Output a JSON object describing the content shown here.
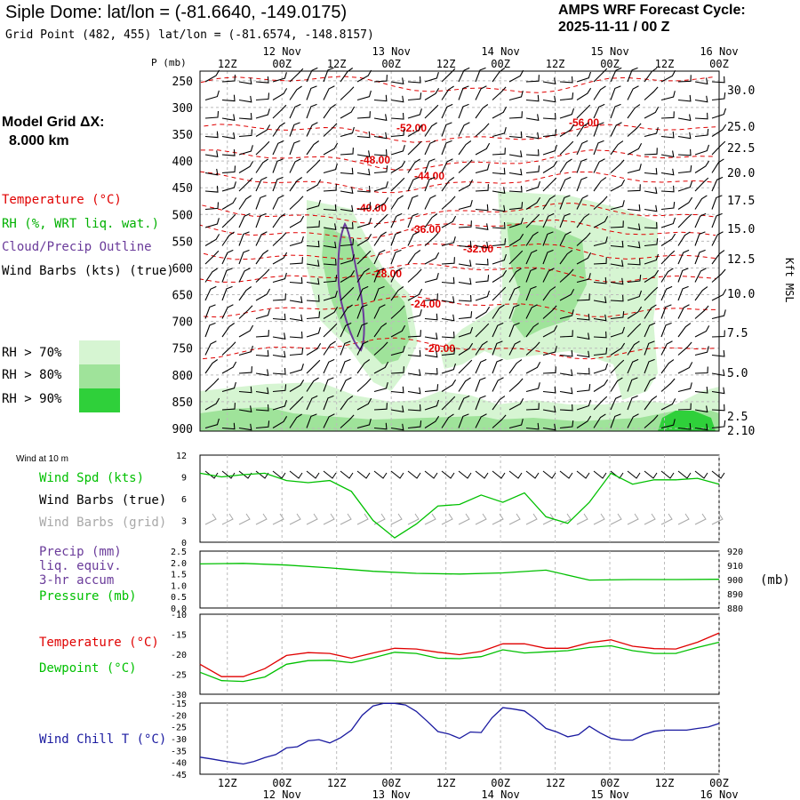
{
  "header": {
    "title": "Siple Dome:  lat/lon = (-81.6640, -149.0175)",
    "subtitle": "Grid Point (482, 455) lat/lon = (-81.6574, -148.8157)",
    "cycle_line1": "AMPS WRF Forecast Cycle:",
    "cycle_line2": "2025-11-11 / 00  Z"
  },
  "left_panel": {
    "model_grid_line1": "Model Grid ΔX:",
    "model_grid_line2": "8.000 km",
    "legend_temperature": "Temperature (°C)",
    "legend_rh": "RH (%, WRT liq. wat.)",
    "legend_cloud": "Cloud/Precip Outline",
    "legend_wind": "Wind Barbs (kts) (true)",
    "rh_labels": [
      "RH > 70%",
      "RH > 80%",
      "RH > 90%"
    ]
  },
  "colors": {
    "temperature": "#e00000",
    "dewpoint": "#00c000",
    "cloud": "#6a3b9a",
    "windchill": "#1a1aa0",
    "wind_barb_grid": "#a8a8a8",
    "rh70": "#d6f5d2",
    "rh80": "#9fe39a",
    "rh90": "#2fd03a"
  },
  "chart_data": [
    {
      "type": "cross_section",
      "time_axis": {
        "ticks": [
          "12Z",
          "00Z",
          "12Z",
          "00Z",
          "12Z",
          "00Z",
          "12Z",
          "00Z",
          "12Z",
          "00Z"
        ],
        "dates": [
          "12 Nov",
          "13 Nov",
          "14 Nov",
          "15 Nov",
          "16 Nov"
        ]
      },
      "pressure_label": "P (mb)",
      "pressure_levels": [
        250,
        300,
        350,
        400,
        450,
        500,
        550,
        600,
        650,
        700,
        750,
        800,
        850,
        900
      ],
      "height_label": "Kft MSL",
      "height_ticks": [
        "30.0",
        "25.0",
        "22.5",
        "20.0",
        "17.5",
        "15.0",
        "12.5",
        "10.0",
        "7.5",
        "5.0",
        "2.5",
        "2.10"
      ],
      "isotherm_labels": [
        "-56.00",
        "-52.00",
        "-48.00",
        "-44.00",
        "-40.00",
        "-36.00",
        "-32.00",
        "-28.00",
        "-24.00",
        "-20.00"
      ],
      "rh_thresholds": [
        70,
        80,
        90
      ]
    },
    {
      "type": "line",
      "panel_label": "Wind at 10 m",
      "series_labels": [
        "Wind Spd (kts)",
        "Wind Barbs (true)",
        "Wind Barbs (grid)"
      ],
      "ylim": [
        0,
        12
      ],
      "yticks": [
        "12",
        "9",
        "6",
        "3",
        "0"
      ],
      "x_hours": [
        0,
        6,
        12,
        18,
        24,
        30,
        36,
        42,
        48,
        54,
        60,
        66,
        72,
        78,
        84,
        90,
        96,
        102,
        108,
        114,
        120,
        126,
        132,
        138,
        144
      ],
      "wind_speed_kts": [
        9.5,
        9.0,
        9.3,
        9.5,
        8.5,
        8.2,
        8.5,
        7.0,
        3.0,
        0.6,
        2.5,
        5.0,
        5.2,
        6.5,
        5.5,
        6.8,
        3.5,
        2.6,
        5.5,
        9.5,
        8.0,
        8.6,
        8.6,
        8.8,
        8.0
      ]
    },
    {
      "type": "line",
      "series_labels": [
        "Precip (mm)",
        "liq. equiv.",
        "3-hr accum",
        "Pressure (mb)"
      ],
      "y_left_ticks": [
        "2.5",
        "2.0",
        "1.5",
        "1.0",
        "0.5",
        "0.0"
      ],
      "y_right_ticks": [
        "920",
        "910",
        "900",
        "890",
        "880"
      ],
      "y_right_unit": "(mb)",
      "ylim_pressure": [
        880,
        920
      ],
      "x_hours": [
        0,
        12,
        24,
        36,
        48,
        60,
        72,
        84,
        96,
        108,
        120,
        132,
        144
      ],
      "pressure_mb": [
        911,
        911.4,
        910.2,
        908.2,
        905.8,
        904.4,
        903.9,
        904.7,
        906.6,
        899.6,
        900,
        900,
        900.2
      ],
      "precip_mm": [
        0,
        0,
        0,
        0,
        0,
        0,
        0,
        0,
        0,
        0,
        0,
        0,
        0
      ]
    },
    {
      "type": "line",
      "series_labels": [
        "Temperature (°C)",
        "Dewpoint (°C)"
      ],
      "ylim": [
        -30,
        -10
      ],
      "yticks": [
        "-10",
        "-15",
        "-20",
        "-25",
        "-30"
      ],
      "x_hours": [
        0,
        6,
        12,
        18,
        24,
        30,
        36,
        42,
        48,
        54,
        60,
        66,
        72,
        78,
        84,
        90,
        96,
        102,
        108,
        114,
        120,
        126,
        132,
        138,
        144
      ],
      "temperature_c": [
        -22.5,
        -25.6,
        -25.6,
        -23.6,
        -20.3,
        -19.6,
        -19.8,
        -21.0,
        -19.7,
        -18.5,
        -18.7,
        -19.5,
        -20.1,
        -19.3,
        -17.4,
        -17.4,
        -18.5,
        -18.5,
        -17.1,
        -16.4,
        -18.0,
        -18.6,
        -18.7,
        -17.0,
        -14.7
      ],
      "dewpoint_c": [
        -24.5,
        -26.6,
        -26.8,
        -25.7,
        -22.5,
        -21.6,
        -21.5,
        -22.1,
        -20.9,
        -19.5,
        -19.8,
        -21.0,
        -21.1,
        -20.6,
        -18.9,
        -19.7,
        -19.4,
        -19.1,
        -18.3,
        -17.9,
        -19.1,
        -19.8,
        -19.8,
        -18.3,
        -17.0
      ]
    },
    {
      "type": "line",
      "series_labels": [
        "Wind Chill T (°C)"
      ],
      "ylim": [
        -45,
        -15
      ],
      "yticks": [
        "-15",
        "-20",
        "-25",
        "-30",
        "-35",
        "-40",
        "-45"
      ],
      "x_hours": [
        0,
        3,
        6,
        9,
        12,
        15,
        18,
        21,
        24,
        27,
        30,
        33,
        36,
        39,
        42,
        45,
        48,
        51,
        54,
        57,
        60,
        63,
        66,
        69,
        72,
        75,
        78,
        81,
        84,
        87,
        90,
        93,
        96,
        99,
        102,
        105,
        108,
        111,
        114,
        117,
        120,
        123,
        126,
        129,
        132,
        135,
        138,
        141,
        144
      ],
      "windchill_c": [
        -37.8,
        -38.5,
        -39.3,
        -40.0,
        -40.7,
        -39.6,
        -38.0,
        -36.7,
        -33.9,
        -33.4,
        -30.9,
        -30.4,
        -31.8,
        -29.6,
        -26.4,
        -20.1,
        -16.2,
        -15.1,
        -15.1,
        -15.8,
        -18.5,
        -22.6,
        -27.0,
        -28.0,
        -29.9,
        -27.2,
        -27.4,
        -21.2,
        -16.9,
        -17.5,
        -18.3,
        -21.7,
        -25.7,
        -27.2,
        -29.2,
        -28.3,
        -24.8,
        -27.6,
        -29.9,
        -30.6,
        -30.6,
        -28.3,
        -26.9,
        -26.4,
        -26.4,
        -26.4,
        -25.7,
        -25.1,
        -23.6
      ]
    }
  ],
  "axes": {
    "bottom_times": [
      "12Z",
      "00Z",
      "12Z",
      "00Z",
      "12Z",
      "00Z",
      "12Z",
      "00Z",
      "12Z",
      "00Z"
    ],
    "bottom_dates": [
      "12 Nov",
      "13 Nov",
      "14 Nov",
      "15 Nov",
      "16 Nov"
    ]
  }
}
